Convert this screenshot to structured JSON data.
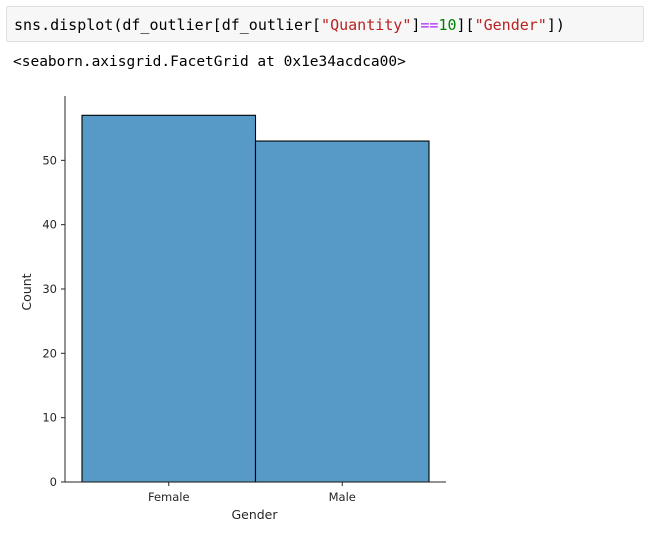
{
  "cell": {
    "tokens": [
      {
        "text": "sns.displot(df_outlier[df_outlier[",
        "kind": "plain"
      },
      {
        "text": "\"Quantity\"",
        "kind": "str"
      },
      {
        "text": "]",
        "kind": "plain"
      },
      {
        "text": "==",
        "kind": "op"
      },
      {
        "text": "10",
        "kind": "num"
      },
      {
        "text": "][",
        "kind": "plain"
      },
      {
        "text": "\"Gender\"",
        "kind": "str"
      },
      {
        "text": "])",
        "kind": "plain"
      }
    ]
  },
  "output": {
    "repr": "<seaborn.axisgrid.FacetGrid at 0x1e34acdca00>"
  },
  "chart_data": {
    "type": "bar",
    "categories": [
      "Female",
      "Male"
    ],
    "values": [
      57,
      53
    ],
    "title": "",
    "xlabel": "Gender",
    "ylabel": "Count",
    "ylim": [
      0,
      60
    ],
    "yticks": [
      0,
      10,
      20,
      30,
      40,
      50
    ],
    "grid": false,
    "bar_color": "#5799c7",
    "edge_color": "#000000"
  }
}
